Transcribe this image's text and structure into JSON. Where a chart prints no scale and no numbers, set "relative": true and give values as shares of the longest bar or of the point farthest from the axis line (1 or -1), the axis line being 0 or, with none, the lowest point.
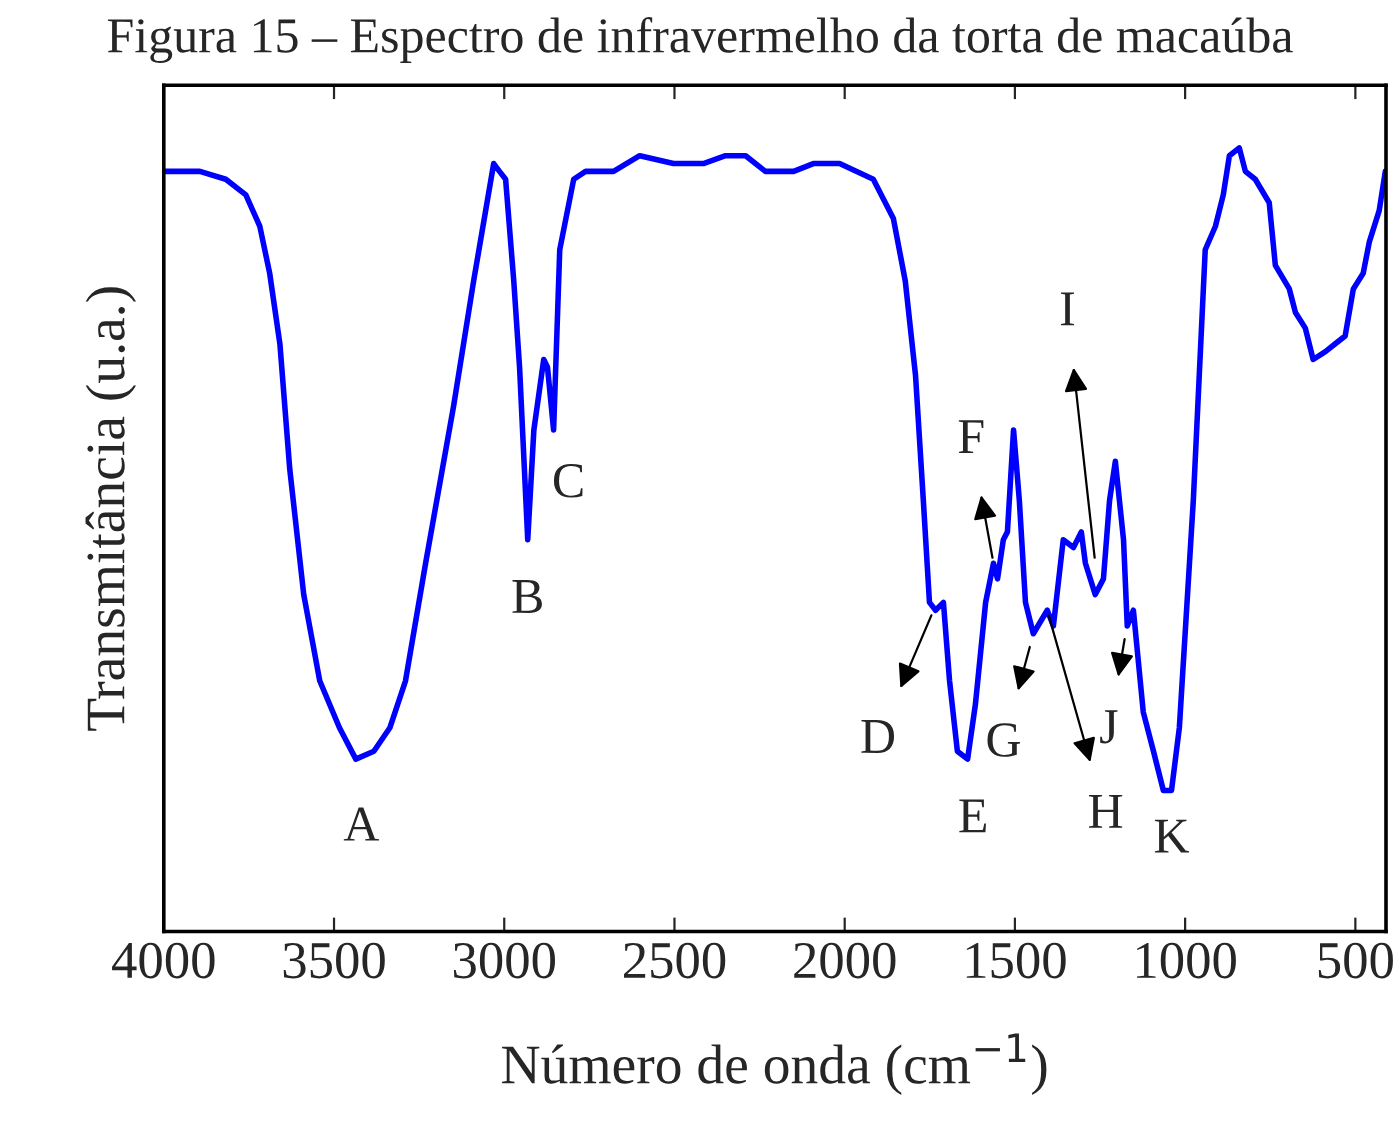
{
  "chart_data": {
    "type": "line",
    "title": "Figura 15 – Espectro de infravermelho da torta de macaúba",
    "xlabel": "Número de onda (cm$^{−1}$)",
    "ylabel": "Transmitância (u.a.)",
    "relative": true,
    "xlim": [
      4000,
      410
    ],
    "xticks": [
      4000,
      3500,
      3000,
      2500,
      2000,
      1500,
      1000,
      500
    ],
    "grid": false,
    "legend": false,
    "series": [
      {
        "color": "#0000ff",
        "x": [
          4000,
          3894,
          3818,
          3759,
          3718,
          3689,
          3659,
          3630,
          3589,
          3542,
          3484,
          3436,
          3383,
          3336,
          3290,
          3231,
          3149,
          3090,
          3031,
          3014,
          2996,
          2972,
          2955,
          2931,
          2913,
          2884,
          2873,
          2855,
          2837,
          2796,
          2761,
          2679,
          2602,
          2503,
          2415,
          2350,
          2291,
          2233,
          2150,
          2092,
          2015,
          1916,
          1857,
          1822,
          1792,
          1769,
          1751,
          1733,
          1710,
          1692,
          1669,
          1639,
          1616,
          1586,
          1563,
          1551,
          1534,
          1522,
          1504,
          1487,
          1469,
          1446,
          1405,
          1387,
          1358,
          1328,
          1305,
          1293,
          1264,
          1240,
          1222,
          1205,
          1181,
          1170,
          1152,
          1123,
          1093,
          1064,
          1040,
          1017,
          976,
          941,
          911,
          888,
          870,
          841,
          823,
          794,
          753,
          735,
          694,
          676,
          647,
          624,
          588,
          559,
          530,
          506,
          477,
          459,
          430,
          412
        ],
        "values": [
          0.97,
          0.97,
          0.96,
          0.94,
          0.9,
          0.84,
          0.75,
          0.59,
          0.43,
          0.32,
          0.26,
          0.22,
          0.23,
          0.26,
          0.32,
          0.47,
          0.67,
          0.83,
          0.98,
          0.97,
          0.96,
          0.83,
          0.72,
          0.5,
          0.64,
          0.73,
          0.72,
          0.64,
          0.87,
          0.96,
          0.97,
          0.97,
          0.99,
          0.98,
          0.98,
          0.99,
          0.99,
          0.97,
          0.97,
          0.98,
          0.98,
          0.96,
          0.91,
          0.83,
          0.71,
          0.55,
          0.42,
          0.41,
          0.42,
          0.32,
          0.23,
          0.22,
          0.29,
          0.42,
          0.47,
          0.45,
          0.5,
          0.51,
          0.64,
          0.55,
          0.42,
          0.38,
          0.41,
          0.39,
          0.5,
          0.49,
          0.51,
          0.47,
          0.43,
          0.45,
          0.55,
          0.6,
          0.5,
          0.39,
          0.41,
          0.28,
          0.23,
          0.18,
          0.18,
          0.26,
          0.55,
          0.87,
          0.9,
          0.94,
          0.99,
          1.0,
          0.97,
          0.96,
          0.93,
          0.85,
          0.82,
          0.79,
          0.77,
          0.73,
          0.74,
          0.75,
          0.76,
          0.82,
          0.84,
          0.88,
          0.92,
          0.97
        ]
      }
    ],
    "annotations": [
      {
        "text": "A",
        "x": 3436,
        "y": 0.22
      },
      {
        "text": "B",
        "x": 2931,
        "y": 0.5
      },
      {
        "text": "C",
        "x": 2860,
        "y": 0.63
      },
      {
        "text": "D",
        "x": 1739,
        "y": 0.41
      },
      {
        "text": "E",
        "x": 1639,
        "y": 0.22
      },
      {
        "text": "F",
        "x": 1563,
        "y": 0.47
      },
      {
        "text": "G",
        "x": 1452,
        "y": 0.37
      },
      {
        "text": "H",
        "x": 1405,
        "y": 0.41
      },
      {
        "text": "I",
        "x": 1264,
        "y": 0.47
      },
      {
        "text": "J",
        "x": 1175,
        "y": 0.38
      },
      {
        "text": "K",
        "x": 1040,
        "y": 0.18
      }
    ]
  }
}
